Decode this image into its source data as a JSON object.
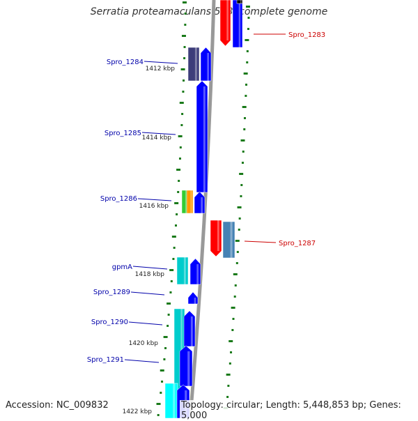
{
  "title": "Serratia proteamaculans 568, complete genome",
  "accession": "Accession: NC_009832",
  "topology": "Topology: circular; Length: 5,448,853 bp; Genes: 5,000",
  "colors": {
    "backbone": "#999999",
    "forward_gene": "#0000ff",
    "reverse_gene": "#ff0000",
    "tick": "#1a7a1a",
    "label_forward": "#0000aa",
    "label_reverse": "#cc0000",
    "cyan": "#00cccc",
    "steelblue": "#4682b4",
    "navy": "#3d3d7a",
    "green": "#33cc33",
    "orange": "#ff9900"
  },
  "gene_labels": [
    {
      "name": "Spro_1283",
      "strand": "reverse"
    },
    {
      "name": "Spro_1284",
      "strand": "forward"
    },
    {
      "name": "Spro_1285",
      "strand": "forward"
    },
    {
      "name": "Spro_1286",
      "strand": "forward"
    },
    {
      "name": "Spro_1287",
      "strand": "reverse"
    },
    {
      "name": "gpmA",
      "strand": "forward"
    },
    {
      "name": "Spro_1289",
      "strand": "forward"
    },
    {
      "name": "Spro_1290",
      "strand": "forward"
    },
    {
      "name": "Spro_1291",
      "strand": "forward"
    }
  ],
  "kbp_labels": [
    "1412 kbp",
    "1414 kbp",
    "1416 kbp",
    "1418 kbp",
    "1420 kbp",
    "1422 kbp"
  ]
}
